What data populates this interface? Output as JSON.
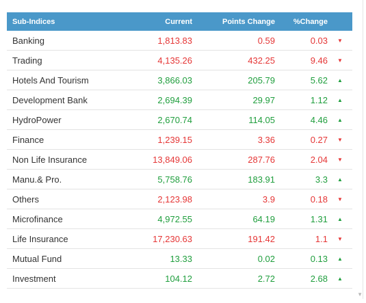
{
  "table": {
    "headers": {
      "name": "Sub-Indices",
      "current": "Current",
      "points": "Points Change",
      "pct": "%Change"
    },
    "rows": [
      {
        "name": "Banking",
        "current": "1,813.83",
        "points": "0.59",
        "pct": "0.03",
        "direction": "down"
      },
      {
        "name": "Trading",
        "current": "4,135.26",
        "points": "432.25",
        "pct": "9.46",
        "direction": "down"
      },
      {
        "name": "Hotels And Tourism",
        "current": "3,866.03",
        "points": "205.79",
        "pct": "5.62",
        "direction": "up"
      },
      {
        "name": "Development Bank",
        "current": "2,694.39",
        "points": "29.97",
        "pct": "1.12",
        "direction": "up"
      },
      {
        "name": "HydroPower",
        "current": "2,670.74",
        "points": "114.05",
        "pct": "4.46",
        "direction": "up"
      },
      {
        "name": "Finance",
        "current": "1,239.15",
        "points": "3.36",
        "pct": "0.27",
        "direction": "down"
      },
      {
        "name": "Non Life Insurance",
        "current": "13,849.06",
        "points": "287.76",
        "pct": "2.04",
        "direction": "down"
      },
      {
        "name": "Manu.& Pro.",
        "current": "5,758.76",
        "points": "183.91",
        "pct": "3.3",
        "direction": "up"
      },
      {
        "name": "Others",
        "current": "2,123.98",
        "points": "3.9",
        "pct": "0.18",
        "direction": "down"
      },
      {
        "name": "Microfinance",
        "current": "4,972.55",
        "points": "64.19",
        "pct": "1.31",
        "direction": "up"
      },
      {
        "name": "Life Insurance",
        "current": "17,230.63",
        "points": "191.42",
        "pct": "1.1",
        "direction": "down"
      },
      {
        "name": "Mutual Fund",
        "current": "13.33",
        "points": "0.02",
        "pct": "0.13",
        "direction": "up"
      },
      {
        "name": "Investment",
        "current": "104.12",
        "points": "2.72",
        "pct": "2.68",
        "direction": "up"
      }
    ]
  },
  "icons": {
    "up": "triangle-up-icon",
    "down": "triangle-down-icon"
  },
  "colors": {
    "header_bg": "#4a98c9",
    "up": "#1f9e3d",
    "down": "#e53535"
  }
}
